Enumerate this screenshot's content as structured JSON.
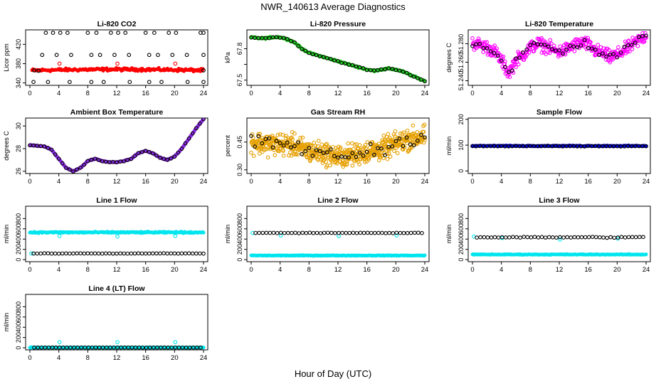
{
  "figure": {
    "title": "NWR_140613  Average Diagnostics",
    "xlabel": "Hour of Day (UTC)"
  },
  "colors": {
    "black": "#000000",
    "red": "#ff0000",
    "green": "#22cc22",
    "magenta": "#ff00ff",
    "purple": "#8a2be2",
    "orange": "#e6a000",
    "blue": "#0000cc",
    "cyan": "#00e5ee"
  },
  "chart_data": [
    {
      "type": "scatter",
      "title": "Li-820 CO2",
      "ylabel": "Licor ppm",
      "xlim": [
        0,
        24
      ],
      "xticks": [
        0,
        4,
        8,
        12,
        16,
        20,
        24
      ],
      "ylim": [
        335,
        450
      ],
      "yticks": [
        340,
        380,
        420
      ],
      "series": [
        {
          "color": "red",
          "marker": "dot",
          "kind": "band",
          "from": 0.3,
          "to": 24,
          "step": 0.12,
          "center": 366,
          "jitter": 2.5,
          "trend": 2
        },
        {
          "color": "black",
          "marker": "circle",
          "x": [
            0.6,
            1.2,
            24
          ],
          "y": [
            366,
            365,
            366
          ]
        },
        {
          "color": "black",
          "marker": "circle",
          "x": [
            2.2,
            3.2,
            4.2,
            5.2,
            8,
            9.2,
            11.2,
            12.2,
            13.2,
            16,
            17.2,
            19.2,
            20.2,
            23.6,
            24
          ],
          "y": [
            444,
            444,
            444,
            444,
            444,
            444,
            444,
            444,
            444,
            444,
            444,
            444,
            444,
            444,
            444
          ]
        },
        {
          "color": "black",
          "marker": "circle",
          "x": [
            0.5,
            2.5,
            5.5,
            8.5,
            10.2,
            13.8,
            16.5,
            18.2,
            21.8,
            24
          ],
          "y": [
            342,
            342,
            342,
            342,
            342,
            342,
            342,
            342,
            342,
            342
          ]
        },
        {
          "color": "black",
          "marker": "circle",
          "x": [
            1.7,
            3.7,
            5.7,
            8.5,
            9.7,
            11.7,
            13.7,
            16.5,
            17.7,
            19.7,
            21.7,
            24
          ],
          "y": [
            398,
            398,
            398,
            398,
            398,
            398,
            398,
            398,
            398,
            398,
            398,
            398
          ]
        },
        {
          "color": "red",
          "marker": "circle",
          "x": [
            4.1,
            12.1,
            20.1
          ],
          "y": [
            380,
            380,
            380
          ]
        }
      ]
    },
    {
      "type": "scatter",
      "title": "Li-820 Pressure",
      "ylabel": "kPa",
      "xlim": [
        0,
        24
      ],
      "xticks": [
        0,
        4,
        8,
        12,
        16,
        20,
        24
      ],
      "ylim": [
        67.45,
        67.98
      ],
      "yticks": [
        67.5,
        67.65,
        67.8
      ],
      "ytick_labels": [
        "67.5",
        "",
        "67.8"
      ],
      "series": [
        {
          "color": "green",
          "marker": "dot",
          "kind": "path",
          "step": 0.08,
          "jitter": 0.006,
          "x": [
            0,
            1,
            2,
            3,
            4,
            5,
            6,
            7,
            8,
            9,
            10,
            11,
            12,
            13,
            14,
            15,
            16,
            17,
            18,
            19,
            20,
            21,
            22,
            23,
            24
          ],
          "y": [
            67.91,
            67.9,
            67.9,
            67.91,
            67.91,
            67.89,
            67.86,
            67.8,
            67.76,
            67.74,
            67.72,
            67.7,
            67.68,
            67.66,
            67.64,
            67.62,
            67.6,
            67.59,
            67.6,
            67.61,
            67.6,
            67.58,
            67.55,
            67.52,
            67.49
          ]
        },
        {
          "color": "black",
          "marker": "circle",
          "kind": "path",
          "step": 0.5,
          "jitter": 0.004,
          "x": [
            0,
            1,
            2,
            3,
            4,
            5,
            6,
            7,
            8,
            9,
            10,
            11,
            12,
            13,
            14,
            15,
            16,
            17,
            18,
            19,
            20,
            21,
            22,
            23,
            24
          ],
          "y": [
            67.91,
            67.9,
            67.9,
            67.91,
            67.91,
            67.89,
            67.86,
            67.8,
            67.76,
            67.74,
            67.72,
            67.7,
            67.68,
            67.66,
            67.64,
            67.62,
            67.6,
            67.59,
            67.6,
            67.61,
            67.6,
            67.58,
            67.55,
            67.52,
            67.49
          ]
        }
      ]
    },
    {
      "type": "scatter",
      "title": "Li-820 Temperature",
      "ylabel": "degrees C",
      "xlim": [
        0,
        24
      ],
      "xticks": [
        0,
        4,
        8,
        12,
        16,
        20,
        24
      ],
      "ylim": [
        51.235,
        51.295
      ],
      "yticks": [
        51.24,
        51.26,
        51.28
      ],
      "ytick_labels": [
        "51.240",
        "51.260",
        "51.280"
      ],
      "series": [
        {
          "color": "magenta",
          "marker": "circle",
          "kind": "path",
          "step": 0.06,
          "jitter": 0.006,
          "x": [
            0,
            1,
            2,
            3,
            4,
            5,
            6,
            7,
            8,
            9,
            10,
            11,
            12,
            13,
            14,
            15,
            16,
            17,
            18,
            19,
            20,
            21,
            22,
            23,
            24
          ],
          "y": [
            51.281,
            51.279,
            51.276,
            51.272,
            51.262,
            51.248,
            51.262,
            51.268,
            51.276,
            51.28,
            51.278,
            51.274,
            51.271,
            51.274,
            51.278,
            51.281,
            51.279,
            51.272,
            51.27,
            51.265,
            51.268,
            51.273,
            51.278,
            51.284,
            51.289
          ]
        },
        {
          "color": "black",
          "marker": "circle",
          "kind": "path",
          "step": 0.5,
          "jitter": 0.004,
          "x": [
            0,
            1,
            2,
            3,
            4,
            5,
            6,
            7,
            8,
            9,
            10,
            11,
            12,
            13,
            14,
            15,
            16,
            17,
            18,
            19,
            20,
            21,
            22,
            23,
            24
          ],
          "y": [
            51.281,
            51.279,
            51.276,
            51.272,
            51.262,
            51.248,
            51.262,
            51.268,
            51.276,
            51.28,
            51.278,
            51.274,
            51.271,
            51.274,
            51.278,
            51.281,
            51.279,
            51.272,
            51.27,
            51.265,
            51.268,
            51.273,
            51.278,
            51.284,
            51.289
          ]
        }
      ]
    },
    {
      "type": "scatter",
      "title": "Ambient Box Temperature",
      "ylabel": "degrees C",
      "xlim": [
        0,
        24
      ],
      "xticks": [
        0,
        4,
        8,
        12,
        16,
        20,
        24
      ],
      "ylim": [
        25.8,
        30.7
      ],
      "yticks": [
        26,
        28,
        30
      ],
      "series": [
        {
          "color": "purple",
          "marker": "dot",
          "kind": "path",
          "step": 0.06,
          "jitter": 0.03,
          "x": [
            0,
            2,
            3,
            4,
            5,
            6,
            7,
            8,
            9,
            10,
            11,
            12,
            13,
            14,
            15,
            16,
            17,
            18,
            19,
            20,
            21,
            22,
            23,
            24
          ],
          "y": [
            28.3,
            28.2,
            27.9,
            27.1,
            26.3,
            26.0,
            26.3,
            26.9,
            27.1,
            26.9,
            26.8,
            26.8,
            26.9,
            27.1,
            27.6,
            27.8,
            27.6,
            27.2,
            27.0,
            27.3,
            28.0,
            28.9,
            29.8,
            30.6
          ]
        },
        {
          "color": "black",
          "marker": "circle",
          "kind": "path",
          "step": 0.5,
          "jitter": 0.02,
          "x": [
            0,
            2,
            3,
            4,
            5,
            6,
            7,
            8,
            9,
            10,
            11,
            12,
            13,
            14,
            15,
            16,
            17,
            18,
            19,
            20,
            21,
            22,
            23,
            24
          ],
          "y": [
            28.3,
            28.2,
            27.9,
            27.1,
            26.3,
            26.0,
            26.3,
            26.9,
            27.1,
            26.9,
            26.8,
            26.8,
            26.9,
            27.1,
            27.6,
            27.8,
            27.6,
            27.2,
            27.0,
            27.3,
            28.0,
            28.9,
            29.8,
            30.6
          ]
        }
      ]
    },
    {
      "type": "scatter",
      "title": "Gas Stream RH",
      "ylabel": "percent",
      "xlim": [
        0,
        24
      ],
      "xticks": [
        0,
        4,
        8,
        12,
        16,
        20,
        24
      ],
      "ylim": [
        0.28,
        0.58
      ],
      "yticks": [
        0.3,
        0.45
      ],
      "ytick_labels": [
        "0.30",
        "0.45"
      ],
      "series": [
        {
          "color": "orange",
          "marker": "circle",
          "kind": "path",
          "step": 0.04,
          "jitter": 0.05,
          "x": [
            0,
            2,
            4,
            6,
            8,
            10,
            12,
            14,
            16,
            18,
            20,
            22,
            24
          ],
          "y": [
            0.45,
            0.44,
            0.44,
            0.43,
            0.4,
            0.39,
            0.37,
            0.38,
            0.4,
            0.41,
            0.44,
            0.47,
            0.48
          ]
        },
        {
          "color": "black",
          "marker": "circle",
          "kind": "path",
          "step": 0.5,
          "jitter": 0.03,
          "x": [
            0,
            2,
            4,
            6,
            8,
            10,
            12,
            14,
            16,
            18,
            20,
            22,
            24
          ],
          "y": [
            0.45,
            0.44,
            0.44,
            0.43,
            0.4,
            0.39,
            0.37,
            0.38,
            0.4,
            0.41,
            0.44,
            0.47,
            0.48
          ]
        }
      ]
    },
    {
      "type": "scatter",
      "title": "Sample Flow",
      "ylabel": "ml/min",
      "xlim": [
        0,
        24
      ],
      "xticks": [
        0,
        4,
        8,
        12,
        16,
        20,
        24
      ],
      "ylim": [
        -10,
        205
      ],
      "yticks": [
        0,
        100,
        200
      ],
      "series": [
        {
          "color": "blue",
          "marker": "dot",
          "kind": "band",
          "from": 0,
          "to": 24,
          "step": 0.1,
          "center": 97,
          "jitter": 1.5,
          "trend": 0
        },
        {
          "color": "black",
          "marker": "circle",
          "kind": "band",
          "from": 0,
          "to": 24,
          "step": 0.5,
          "center": 96,
          "jitter": 1.0,
          "trend": 0
        }
      ]
    },
    {
      "type": "scatter",
      "title": "Line 1 Flow",
      "ylabel": "ml/min",
      "xlim": [
        0,
        24
      ],
      "xticks": [
        0,
        4,
        8,
        12,
        16,
        20,
        24
      ],
      "ylim": [
        -40,
        1040
      ],
      "yticks": [
        0,
        200,
        400,
        600,
        800
      ],
      "series": [
        {
          "color": "cyan",
          "marker": "dot",
          "kind": "band",
          "from": 0,
          "to": 24,
          "step": 0.1,
          "center": 530,
          "jitter": 12,
          "trend": 0
        },
        {
          "color": "cyan",
          "marker": "circle",
          "x": [
            0.2,
            4.1,
            12.1,
            20.1
          ],
          "y": [
            120,
            460,
            450,
            460
          ]
        },
        {
          "color": "black",
          "marker": "circle",
          "kind": "band",
          "from": 0.5,
          "to": 24,
          "step": 0.5,
          "center": 120,
          "jitter": 3,
          "trend": 0
        }
      ]
    },
    {
      "type": "scatter",
      "title": "Line 2 Flow",
      "ylabel": "ml/min",
      "xlim": [
        0,
        24
      ],
      "xticks": [
        0,
        4,
        8,
        12,
        16,
        20,
        24
      ],
      "ylim": [
        -40,
        1040
      ],
      "yticks": [
        0,
        200,
        400,
        600,
        800
      ],
      "series": [
        {
          "color": "cyan",
          "marker": "dot",
          "kind": "band",
          "from": 0,
          "to": 24,
          "step": 0.1,
          "center": 80,
          "jitter": 6,
          "trend": 0
        },
        {
          "color": "cyan",
          "marker": "circle",
          "x": [
            0.2,
            4.1,
            12.1,
            20.1
          ],
          "y": [
            520,
            470,
            460,
            470
          ]
        },
        {
          "color": "black",
          "marker": "circle",
          "kind": "band",
          "from": 0.6,
          "to": 24,
          "step": 0.5,
          "center": 520,
          "jitter": 4,
          "trend": 0
        }
      ]
    },
    {
      "type": "scatter",
      "title": "Line 3 Flow",
      "ylabel": "ml/min",
      "xlim": [
        0,
        24
      ],
      "xticks": [
        0,
        4,
        8,
        12,
        16,
        20,
        24
      ],
      "ylim": [
        -40,
        1040
      ],
      "yticks": [
        0,
        200,
        400,
        600,
        800
      ],
      "series": [
        {
          "color": "cyan",
          "marker": "dot",
          "kind": "band",
          "from": 0,
          "to": 24,
          "step": 0.1,
          "center": 100,
          "jitter": 6,
          "trend": 0
        },
        {
          "color": "cyan",
          "marker": "circle",
          "x": [
            0.2,
            4.1,
            12.1,
            20.1
          ],
          "y": [
            450,
            420,
            390,
            410
          ]
        },
        {
          "color": "black",
          "marker": "circle",
          "kind": "band",
          "from": 0.6,
          "to": 24,
          "step": 0.5,
          "center": 435,
          "jitter": 8,
          "trend": 0
        }
      ]
    },
    {
      "type": "scatter",
      "title": "Line 4 (LT) Flow",
      "ylabel": "ml/min",
      "xlim": [
        0,
        24
      ],
      "xticks": [
        0,
        4,
        8,
        12,
        16,
        20,
        24
      ],
      "ylim": [
        -40,
        1040
      ],
      "yticks": [
        0,
        200,
        400,
        600,
        800
      ],
      "series": [
        {
          "color": "cyan",
          "marker": "dot",
          "kind": "band",
          "from": 0,
          "to": 24,
          "step": 0.1,
          "center": 5,
          "jitter": 2,
          "trend": 0
        },
        {
          "color": "cyan",
          "marker": "circle",
          "x": [
            0.2,
            4.1,
            12.1,
            20.1
          ],
          "y": [
            8,
            110,
            110,
            110
          ]
        },
        {
          "color": "black",
          "marker": "circle",
          "kind": "band",
          "from": 0.6,
          "to": 24,
          "step": 0.5,
          "center": 5,
          "jitter": 1,
          "trend": 0
        }
      ]
    }
  ]
}
